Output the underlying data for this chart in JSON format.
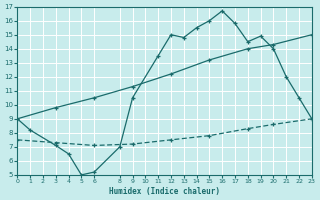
{
  "bg_color": "#c8ecec",
  "grid_color": "#b0dede",
  "line_color": "#1a6b6b",
  "xlim": [
    0,
    23
  ],
  "ylim": [
    5,
    17
  ],
  "xticks": [
    0,
    1,
    2,
    3,
    4,
    5,
    6,
    8,
    9,
    10,
    11,
    12,
    13,
    14,
    15,
    16,
    17,
    18,
    19,
    20,
    21,
    22,
    23
  ],
  "yticks": [
    5,
    6,
    7,
    8,
    9,
    10,
    11,
    12,
    13,
    14,
    15,
    16,
    17
  ],
  "xlabel": "Humidex (Indice chaleur)",
  "line1_x": [
    0,
    1,
    3,
    4,
    5,
    6,
    8,
    9,
    11,
    12,
    13,
    14,
    15,
    16,
    17,
    18,
    19,
    20,
    21,
    22,
    23
  ],
  "line1_y": [
    9.0,
    8.2,
    7.1,
    6.5,
    5.0,
    5.2,
    7.0,
    10.5,
    13.5,
    15.0,
    14.8,
    15.5,
    16.0,
    16.7,
    15.8,
    14.5,
    14.9,
    14.0,
    12.0,
    10.5,
    9.0
  ],
  "line2_x": [
    0,
    3,
    6,
    9,
    12,
    15,
    18,
    20,
    23
  ],
  "line2_y": [
    9.0,
    9.8,
    10.5,
    11.3,
    12.2,
    13.2,
    14.0,
    14.3,
    15.0
  ],
  "line3_x": [
    0,
    3,
    6,
    9,
    12,
    15,
    18,
    20,
    23
  ],
  "line3_y": [
    7.5,
    7.3,
    7.1,
    7.2,
    7.5,
    7.8,
    8.3,
    8.6,
    9.0
  ]
}
